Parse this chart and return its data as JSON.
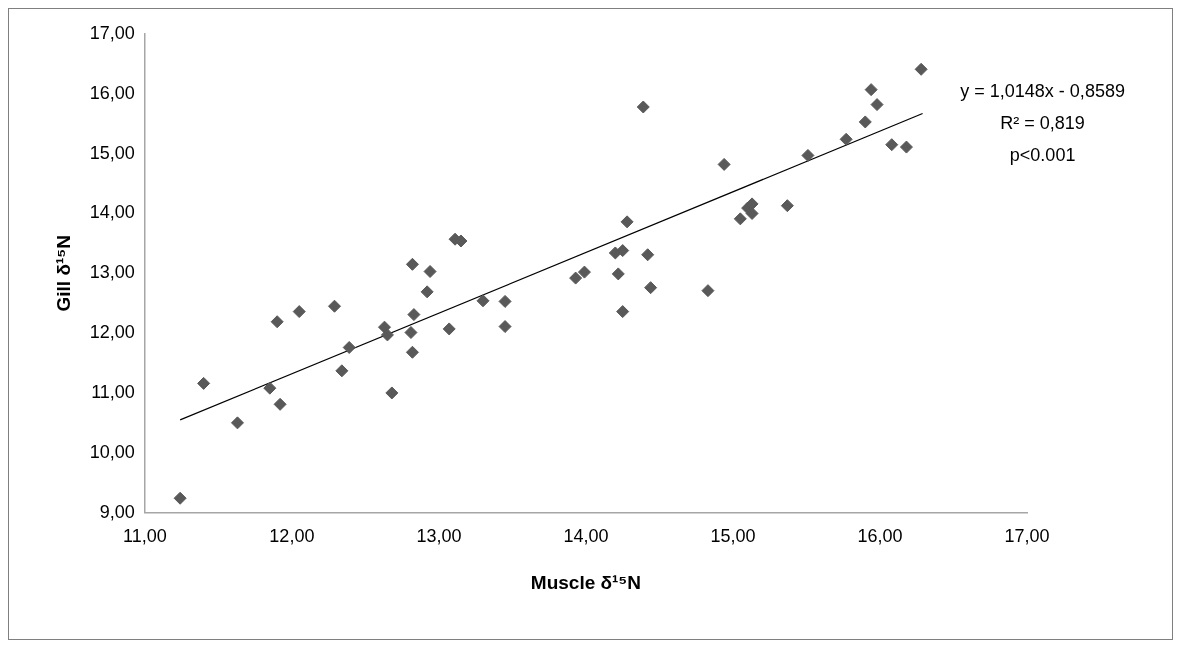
{
  "chart_data": {
    "type": "scatter",
    "xlabel": "Muscle δ¹⁵N",
    "ylabel": "Gill δ¹⁵N",
    "xlim": [
      11,
      17
    ],
    "xticks": [
      {
        "value": 11,
        "label": "11,00"
      },
      {
        "value": 12,
        "label": "12,00"
      },
      {
        "value": 13,
        "label": "13,00"
      },
      {
        "value": 14,
        "label": "14,00"
      },
      {
        "value": 15,
        "label": "15,00"
      },
      {
        "value": 16,
        "label": "16,00"
      },
      {
        "value": 17,
        "label": "17,00"
      }
    ],
    "ylim": [
      9,
      17
    ],
    "yticks": [
      {
        "value": 9,
        "label": "9,00"
      },
      {
        "value": 10,
        "label": "10,00"
      },
      {
        "value": 11,
        "label": "11,00"
      },
      {
        "value": 12,
        "label": "12,00"
      },
      {
        "value": 13,
        "label": "13,00"
      },
      {
        "value": 14,
        "label": "14,00"
      },
      {
        "value": 15,
        "label": "15,00"
      },
      {
        "value": 16,
        "label": "16,00"
      },
      {
        "value": 17,
        "label": "17,00"
      }
    ],
    "grid": false,
    "legend": false,
    "marker": "diamond",
    "series": [
      {
        "color": "#595959",
        "x": [
          11.24,
          11.4,
          11.63,
          11.9,
          11.85,
          11.92,
          12.05,
          12.29,
          12.34,
          12.39,
          12.68,
          12.63,
          12.65,
          12.81,
          12.82,
          12.83,
          12.92,
          12.94,
          12.82,
          13.07,
          13.11,
          13.15,
          13.3,
          13.45,
          13.45,
          13.93,
          13.99,
          14.2,
          14.25,
          14.28,
          14.22,
          14.42,
          14.44,
          14.25,
          14.39,
          14.83,
          14.94,
          15.05,
          15.1,
          15.13,
          15.13,
          15.37,
          15.51,
          15.77,
          15.9,
          15.94,
          15.98,
          16.08,
          16.18,
          16.28
        ],
        "values": [
          9.24,
          11.16,
          10.5,
          12.19,
          11.08,
          10.81,
          12.36,
          12.45,
          11.37,
          11.76,
          11.0,
          12.1,
          11.97,
          12.01,
          11.68,
          12.31,
          12.69,
          13.03,
          13.15,
          12.07,
          13.57,
          13.54,
          12.54,
          12.53,
          12.11,
          12.92,
          13.02,
          13.34,
          13.38,
          13.86,
          12.99,
          13.31,
          12.76,
          12.36,
          15.78,
          12.71,
          14.82,
          13.91,
          14.09,
          14.16,
          14.0,
          14.13,
          14.97,
          15.24,
          15.53,
          16.07,
          15.82,
          15.15,
          15.11,
          16.41
        ]
      },
      {
        "type": "line",
        "color": "#000000",
        "marker": "none",
        "x": [
          11.24,
          16.29
        ],
        "values": [
          10.55,
          15.67
        ]
      }
    ],
    "annotations": [
      "y = 1,0148x - 0,8589",
      "R² = 0,819",
      "p<0.001"
    ]
  }
}
